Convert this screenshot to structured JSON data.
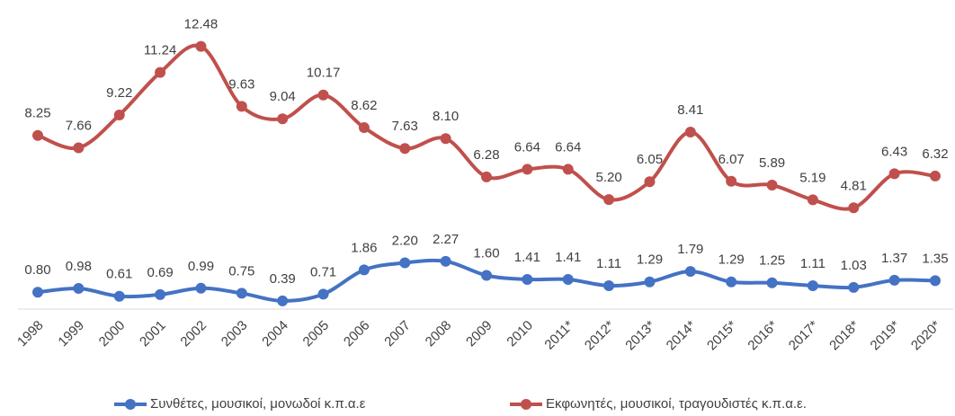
{
  "chart_data": {
    "type": "line",
    "categories": [
      "1998",
      "1999",
      "2000",
      "2001",
      "2002",
      "2003",
      "2004",
      "2005",
      "2006",
      "2007",
      "2008",
      "2009",
      "2010",
      "2011*",
      "2012*",
      "2013*",
      "2014*",
      "2015*",
      "2016*",
      "2017*",
      "2018*",
      "2019*",
      "2020*"
    ],
    "series": [
      {
        "name": "Συνθέτες, μουσικοί, μονωδοί κ.π.α.ε",
        "color": "#4472c4",
        "values": [
          0.8,
          0.98,
          0.61,
          0.69,
          0.99,
          0.75,
          0.39,
          0.71,
          1.86,
          2.2,
          2.27,
          1.6,
          1.41,
          1.41,
          1.11,
          1.29,
          1.79,
          1.29,
          1.25,
          1.11,
          1.03,
          1.37,
          1.35
        ],
        "value_labels": [
          "0.80",
          "0.98",
          "0.61",
          "0.69",
          "0.99",
          "0.75",
          "0.39",
          "0.71",
          "1.86",
          "2.20",
          "2.27",
          "1.60",
          "1.41",
          "1.41",
          "1.11",
          "1.29",
          "1.79",
          "1.29",
          "1.25",
          "1.11",
          "1.03",
          "1.37",
          "1.35"
        ]
      },
      {
        "name": "Εκφωνητές, μουσικοί, τραγουδιστές κ.π.α.ε.",
        "color": "#c0504d",
        "values": [
          8.25,
          7.66,
          9.22,
          11.24,
          12.48,
          9.63,
          9.04,
          10.17,
          8.62,
          7.63,
          8.1,
          6.28,
          6.64,
          6.64,
          5.2,
          6.05,
          8.41,
          6.07,
          5.89,
          5.19,
          4.81,
          6.43,
          6.32
        ],
        "value_labels": [
          "8.25",
          "7.66",
          "9.22",
          "11.24",
          "12.48",
          "9.63",
          "9.04",
          "10.17",
          "8.62",
          "7.63",
          "8.10",
          "6.28",
          "6.64",
          "6.64",
          "5.20",
          "6.05",
          "8.41",
          "6.07",
          "5.89",
          "5.19",
          "4.81",
          "6.43",
          "6.32"
        ]
      }
    ],
    "ylim": [
      0,
      14
    ],
    "smooth": true,
    "legend": "bottom"
  }
}
